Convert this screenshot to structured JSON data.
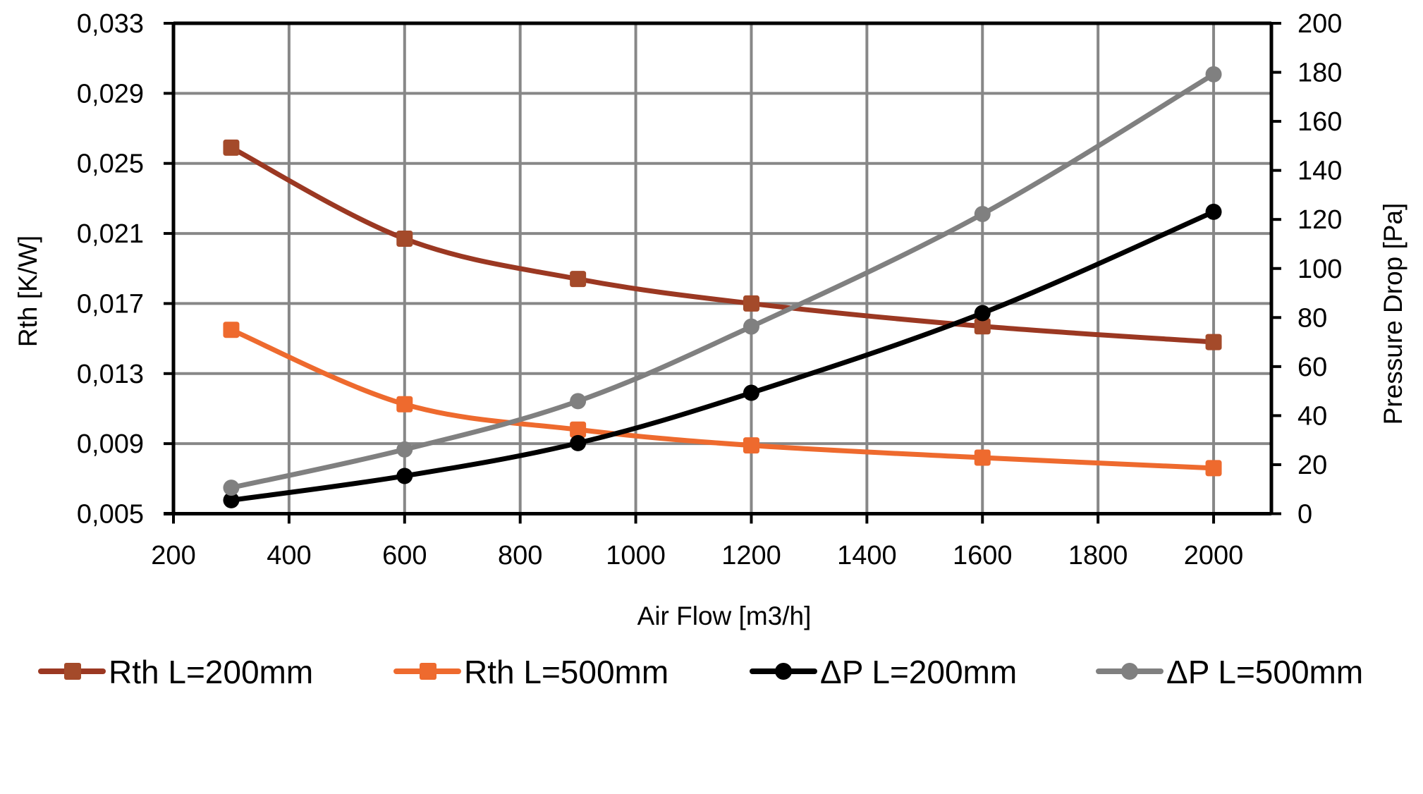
{
  "chart_data": {
    "type": "line",
    "title": "",
    "xlabel": "Air Flow [m3/h]",
    "ylabel": "Rth [K/W]",
    "y2label": "Pressure Drop [Pa]",
    "xlim": [
      200,
      2100
    ],
    "ylim": [
      0.005,
      0.033
    ],
    "y2lim": [
      0,
      200
    ],
    "grid": true,
    "legend_position": "bottom",
    "x_ticks": [
      "200",
      "400",
      "600",
      "800",
      "1000",
      "1200",
      "1400",
      "1600",
      "1800",
      "2000"
    ],
    "x_tick_values": [
      200,
      400,
      600,
      800,
      1000,
      1200,
      1400,
      1600,
      1800,
      2000
    ],
    "y_ticks": [
      "0,005",
      "0,009",
      "0,013",
      "0,017",
      "0,021",
      "0,025",
      "0,029",
      "0,033"
    ],
    "y_tick_values": [
      0.005,
      0.009,
      0.013,
      0.017,
      0.021,
      0.025,
      0.029,
      0.033
    ],
    "y2_ticks": [
      "0",
      "20",
      "40",
      "60",
      "80",
      "100",
      "120",
      "140",
      "160",
      "180",
      "200"
    ],
    "y2_tick_values": [
      0,
      20,
      40,
      60,
      80,
      100,
      120,
      140,
      160,
      180,
      200
    ],
    "x": [
      300,
      600,
      900,
      1200,
      1600,
      2000
    ],
    "series": [
      {
        "name": "Rth L=200mm",
        "axis": "left",
        "marker": "square",
        "color": "#9B3822",
        "marker_color": "#A44A2A",
        "values": [
          0.0259,
          0.0207,
          0.0184,
          0.017,
          0.0157,
          0.0148
        ]
      },
      {
        "name": "Rth L=500mm",
        "axis": "left",
        "marker": "square",
        "color": "#EE6A2E",
        "marker_color": "#EE6A2E",
        "values": [
          0.0155,
          0.01125,
          0.0098,
          0.0089,
          0.0082,
          0.0076
        ]
      },
      {
        "name": "ΔP L=200mm",
        "axis": "right",
        "marker": "circle",
        "color": "#000000",
        "marker_color": "#000000",
        "values": [
          5.5,
          15.4,
          28.8,
          49.3,
          81.8,
          123.1
        ]
      },
      {
        "name": "ΔP L=500mm",
        "axis": "right",
        "marker": "circle",
        "color": "#808080",
        "marker_color": "#808080",
        "values": [
          10.6,
          26.2,
          45.9,
          76.3,
          122.2,
          179.2
        ]
      }
    ]
  }
}
